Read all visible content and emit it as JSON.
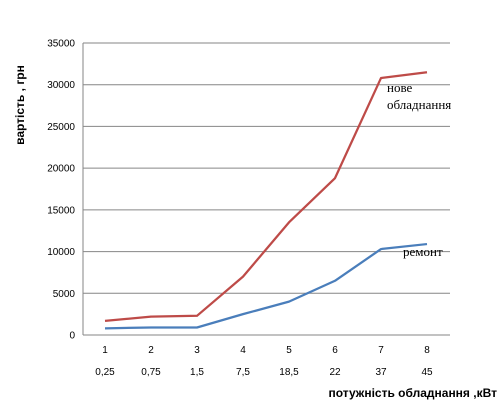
{
  "chart_data": {
    "type": "line",
    "xlabel": "потужність обладнання ,кВт",
    "ylabel": "вартість , грн",
    "ylim": [
      0,
      35000
    ],
    "yticks": [
      0,
      5000,
      10000,
      15000,
      20000,
      25000,
      30000,
      35000
    ],
    "categories": [
      "1",
      "2",
      "3",
      "4",
      "5",
      "6",
      "7",
      "8"
    ],
    "secondary_labels": [
      "0,25",
      "0,75",
      "1,5",
      "7,5",
      "18,5",
      "22",
      "37",
      "45"
    ],
    "grid": "horizontal",
    "series": [
      {
        "name": "нове обладнання",
        "name_lines": [
          "нове",
          "обладнання"
        ],
        "color": "#be4b48",
        "values": [
          1700,
          2200,
          2300,
          7000,
          13500,
          18800,
          30800,
          31500
        ]
      },
      {
        "name": "ремонт",
        "name_lines": [
          "ремонт"
        ],
        "color": "#4a7ebb",
        "values": [
          800,
          900,
          900,
          2500,
          4000,
          6500,
          10300,
          10900
        ]
      }
    ]
  }
}
